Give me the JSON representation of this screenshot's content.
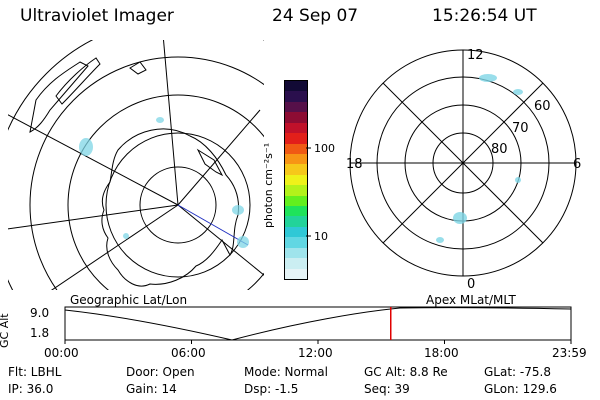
{
  "header": {
    "instrument": "Ultraviolet Imager",
    "date": "24 Sep 07",
    "time": "15:26:54 UT"
  },
  "colorbar": {
    "unit_label": "photon cm⁻²s⁻¹",
    "ticks": [
      "100",
      "10"
    ],
    "colors": [
      "#e6f4f7",
      "#cbeef2",
      "#9fe4ec",
      "#61d7e3",
      "#2fc8d6",
      "#22d39a",
      "#1fe35a",
      "#63ef1e",
      "#b3f21a",
      "#eef21a",
      "#f6c81a",
      "#f79515",
      "#f05a14",
      "#e21f1a",
      "#c0112a",
      "#8d0c33",
      "#561049",
      "#2a0f4d",
      "#120a35"
    ]
  },
  "left_map": {
    "label": "Geographic Lat/Lon"
  },
  "right_map": {
    "label": "Apex MLat/MLT",
    "mlt_labels": {
      "top": "12",
      "left": "18",
      "right": "6",
      "bottom": "0"
    },
    "lat_labels": [
      "60",
      "70",
      "80"
    ]
  },
  "altitude_plot": {
    "ylabel": "GC Alt",
    "yticks": [
      "9.0",
      "1.8"
    ],
    "xticks": [
      "00:00",
      "06:00",
      "12:00",
      "18:00",
      "23:59"
    ],
    "current_time_marker_hours": 15.45,
    "marker_color": "#e00000"
  },
  "info": {
    "row1": {
      "filter": "Flt: LBHL",
      "door": "Door: Open",
      "mode": "Mode: Normal",
      "gc_alt": "GC Alt: 8.8 Re",
      "glat": "GLat: -75.8"
    },
    "row2": {
      "ip": "IP: 36.0",
      "gain": "Gain: 14",
      "dsp": "Dsp:   -1.5",
      "seq": "Seq: 39",
      "glon": "GLon: 129.6"
    }
  }
}
